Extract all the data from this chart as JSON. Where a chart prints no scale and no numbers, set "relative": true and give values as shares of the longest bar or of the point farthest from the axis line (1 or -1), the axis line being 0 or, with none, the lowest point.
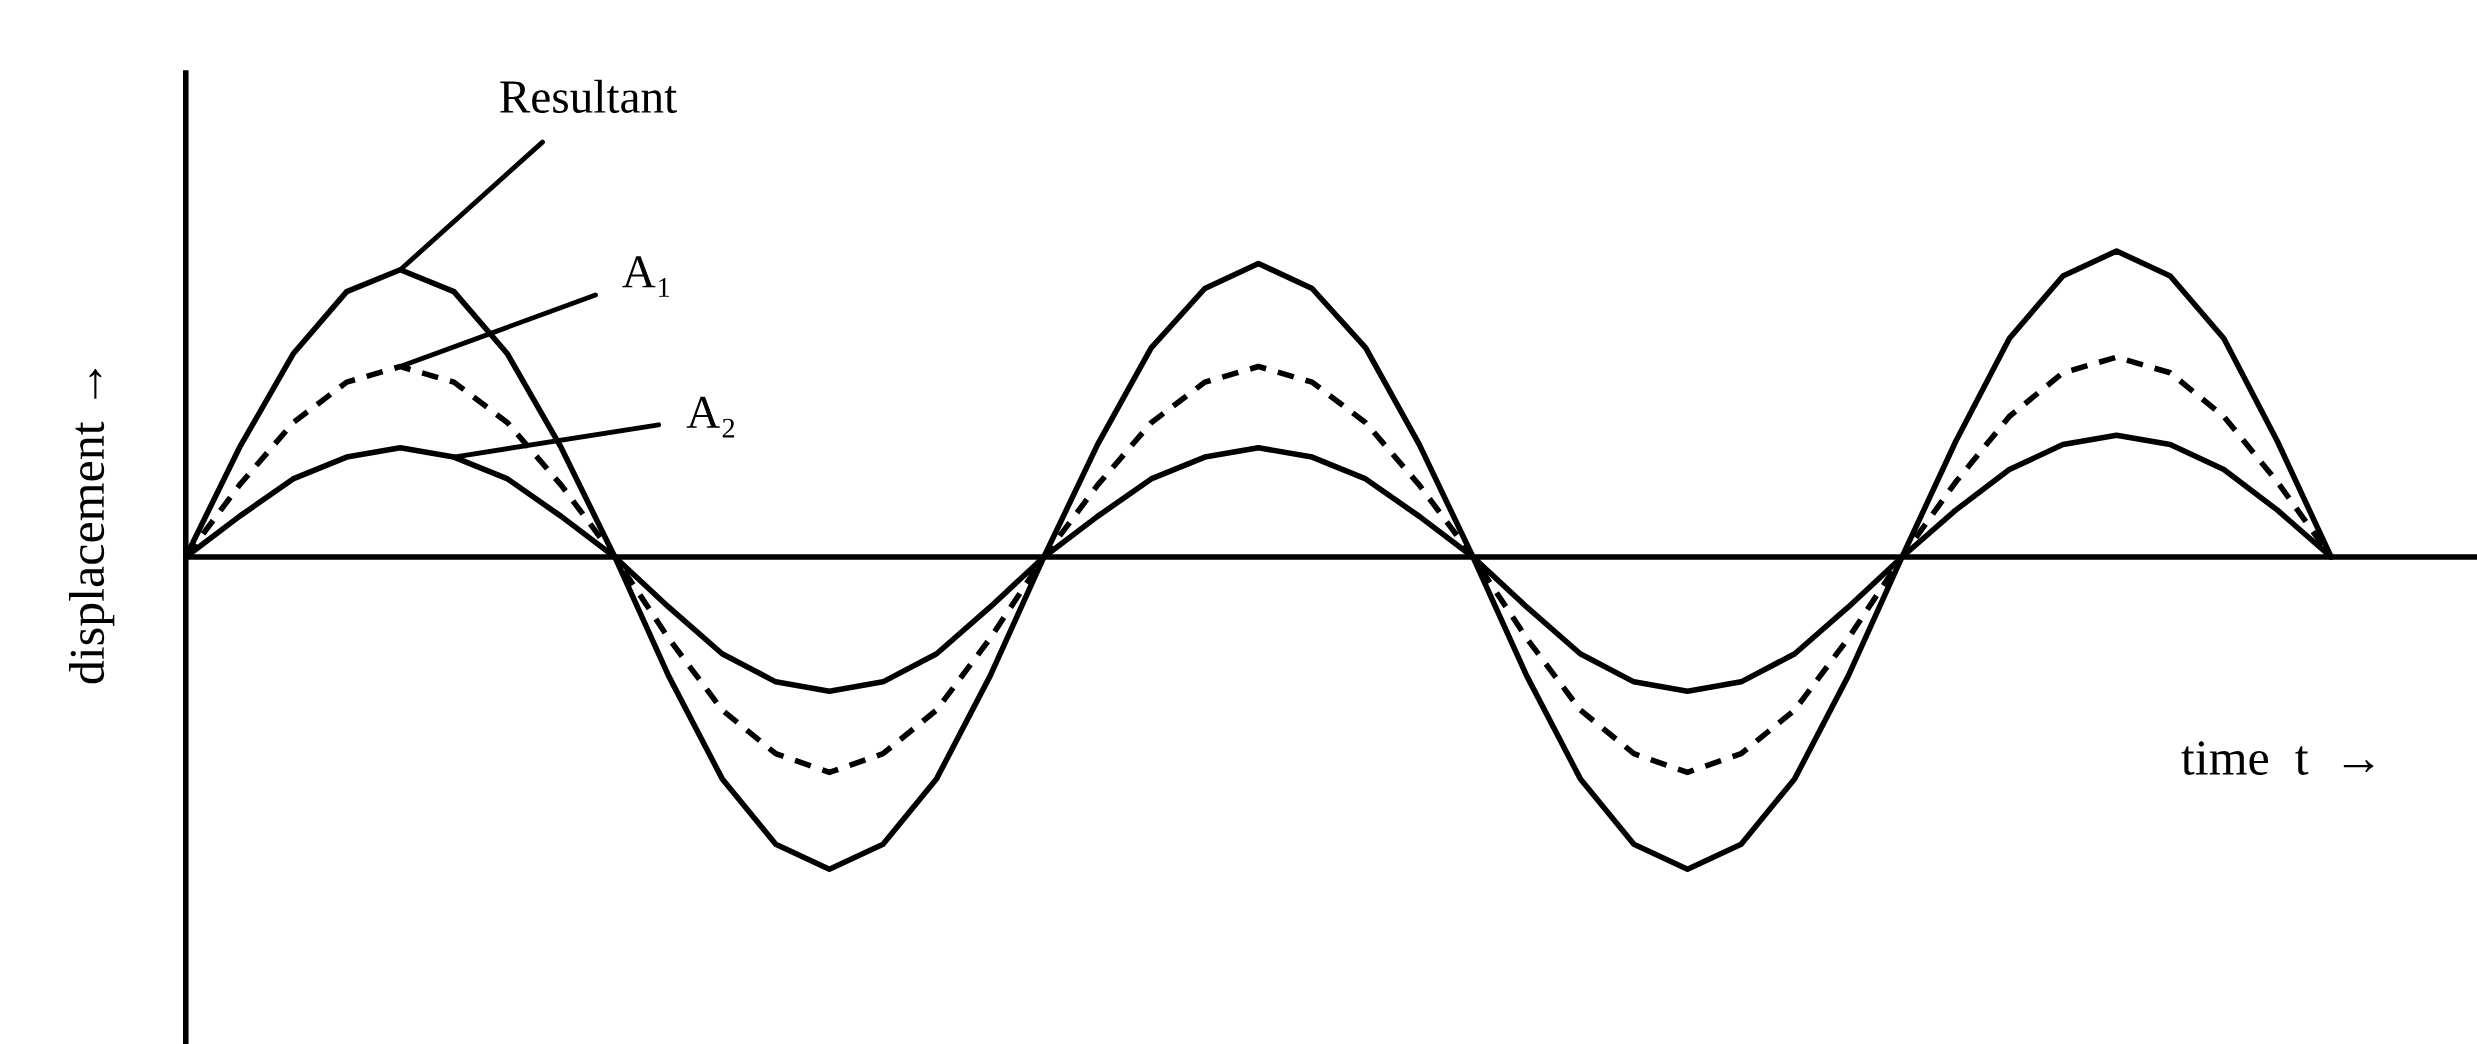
{
  "chart_data": {
    "type": "line",
    "relative": true,
    "xlabel": "time  t  →",
    "ylabel": "displacement →",
    "categories": [
      null,
      null,
      null,
      null,
      null,
      null,
      null,
      null,
      null,
      null,
      null,
      null,
      null,
      null,
      null,
      null,
      null,
      null,
      null,
      null,
      null,
      null,
      null,
      null,
      null,
      null,
      null,
      null,
      null,
      null,
      null,
      null,
      null,
      null,
      null,
      null,
      null,
      null,
      null,
      null,
      null
    ],
    "series": [
      {
        "name": "Resultant",
        "color": "#000000",
        "line_style": "solid",
        "values": [
          0,
          0.35,
          0.65,
          0.85,
          0.92,
          0.85,
          0.65,
          0.35,
          0,
          -0.38,
          -0.71,
          -0.92,
          -1,
          -0.92,
          -0.71,
          -0.38,
          0,
          0.36,
          0.67,
          0.86,
          0.94,
          0.86,
          0.67,
          0.36,
          0,
          -0.38,
          -0.71,
          -0.92,
          -1,
          -0.92,
          -0.71,
          -0.38,
          0,
          0.37,
          0.7,
          0.9,
          0.98,
          0.9,
          0.7,
          0.37,
          0
        ]
      },
      {
        "name": "A₁",
        "color": "#000000",
        "line_style": "dashed",
        "values": [
          0,
          0.23,
          0.43,
          0.56,
          0.61,
          0.56,
          0.43,
          0.23,
          0,
          -0.26,
          -0.49,
          -0.63,
          -0.69,
          -0.63,
          -0.49,
          -0.26,
          0,
          0.23,
          0.43,
          0.56,
          0.61,
          0.56,
          0.43,
          0.23,
          0,
          -0.26,
          -0.49,
          -0.63,
          -0.69,
          -0.63,
          -0.49,
          -0.26,
          0,
          0.24,
          0.45,
          0.59,
          0.64,
          0.59,
          0.45,
          0.24,
          0
        ]
      },
      {
        "name": "A₂",
        "color": "#000000",
        "line_style": "solid",
        "values": [
          0,
          0.13,
          0.25,
          0.32,
          0.35,
          0.32,
          0.25,
          0.13,
          0,
          -0.16,
          -0.31,
          -0.4,
          -0.43,
          -0.4,
          -0.31,
          -0.16,
          0,
          0.13,
          0.25,
          0.32,
          0.35,
          0.32,
          0.25,
          0.13,
          0,
          -0.16,
          -0.31,
          -0.4,
          -0.43,
          -0.4,
          -0.31,
          -0.16,
          0,
          0.15,
          0.28,
          0.36,
          0.39,
          0.36,
          0.28,
          0.15,
          0
        ]
      }
    ]
  }
}
